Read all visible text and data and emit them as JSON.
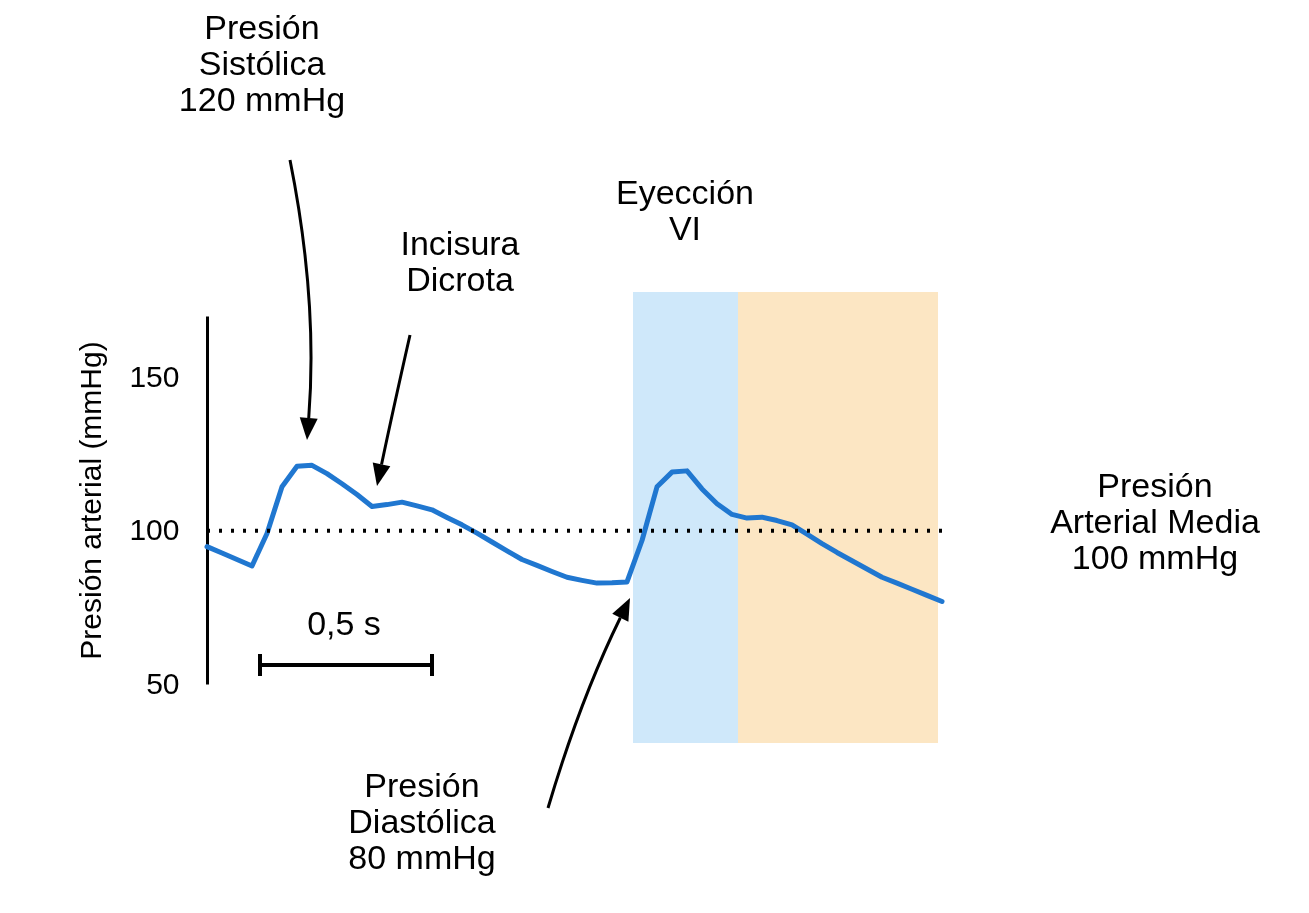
{
  "chart_data": {
    "type": "line",
    "ylabel": "Presión arterial (mmHg)",
    "categories": [
      null,
      null,
      null,
      null,
      null,
      null,
      null,
      null,
      null,
      null,
      null,
      null,
      null,
      null,
      null,
      null,
      null,
      null,
      null,
      null,
      null,
      null,
      null,
      null,
      null,
      null,
      null,
      null,
      null,
      null,
      null,
      null,
      null,
      null,
      null,
      null,
      null,
      null,
      null,
      null,
      null,
      null,
      null,
      null,
      null,
      null,
      null,
      null,
      null,
      null
    ],
    "ylim": [
      50,
      170
    ],
    "yticks": [
      50,
      100,
      150
    ],
    "tick_labels": "y",
    "grid": false,
    "marker": "none",
    "line_style": "solid",
    "series": [
      {
        "color": "#2077d0",
        "values": [
          94.8,
          92.7,
          90.6,
          88.5,
          99.1,
          114.3,
          121.0,
          121.3,
          118.6,
          115.3,
          111.8,
          107.9,
          108.5,
          109.3,
          108.1,
          106.8,
          104.3,
          101.9,
          99.2,
          96.3,
          93.4,
          90.6,
          88.7,
          86.7,
          84.8,
          83.8,
          82.9,
          83.0,
          83.3,
          96.8,
          114.3,
          119.1,
          119.5,
          113.6,
          108.8,
          105.3,
          104.1,
          104.4,
          103.3,
          101.9,
          98.9,
          95.8,
          92.9,
          90.2,
          87.5,
          84.8,
          82.9,
          80.9,
          78.9,
          76.9
        ]
      }
    ],
    "ref_lines": [
      {
        "axis": "y",
        "value": 100,
        "label": "Presión\nArterial Media\n100 mmHg",
        "line_style": "dotted",
        "color": "#000000"
      }
    ],
    "annotations": [
      "Presión\nSistólica\n120 mmHg",
      "Incisura\nDicrota",
      "Presión\nDiastólica\n80 mmHg",
      "0,5 s",
      "Eyección\nVI"
    ]
  }
}
